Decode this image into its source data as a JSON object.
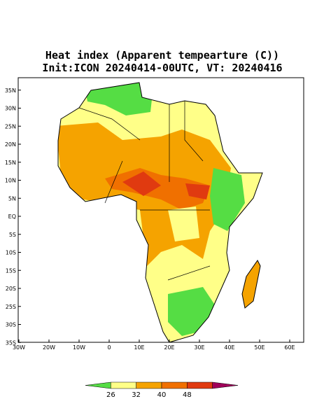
{
  "header": {
    "title": "Heat index (Apparent tempearture (C))",
    "subtitle": "Init:ICON 20240414-00UTC, VT: 20240416"
  },
  "map": {
    "lat_ticks": [
      {
        "value": 35,
        "label": "35N"
      },
      {
        "value": 30,
        "label": "30N"
      },
      {
        "value": 25,
        "label": "25N"
      },
      {
        "value": 20,
        "label": "20N"
      },
      {
        "value": 15,
        "label": "15N"
      },
      {
        "value": 10,
        "label": "10N"
      },
      {
        "value": 5,
        "label": "5N"
      },
      {
        "value": 0,
        "label": "EQ"
      },
      {
        "value": -5,
        "label": "5S"
      },
      {
        "value": -10,
        "label": "10S"
      },
      {
        "value": -15,
        "label": "15S"
      },
      {
        "value": -20,
        "label": "20S"
      },
      {
        "value": -25,
        "label": "25S"
      },
      {
        "value": -30,
        "label": "30S"
      },
      {
        "value": -35,
        "label": "35S"
      }
    ],
    "lon_ticks": [
      {
        "value": -30,
        "label": "30W"
      },
      {
        "value": -20,
        "label": "20W"
      },
      {
        "value": -10,
        "label": "10W"
      },
      {
        "value": 0,
        "label": "0"
      },
      {
        "value": 10,
        "label": "10E"
      },
      {
        "value": 20,
        "label": "20E"
      },
      {
        "value": 30,
        "label": "30E"
      },
      {
        "value": 40,
        "label": "40E"
      },
      {
        "value": 50,
        "label": "50E"
      },
      {
        "value": 60,
        "label": "60E"
      }
    ]
  },
  "colorbar": {
    "ticks": [
      26,
      32,
      40,
      48
    ],
    "colors": [
      "#55dd44",
      "#ffff88",
      "#f5a300",
      "#f07000",
      "#e03a10",
      "#a0005a"
    ]
  }
}
